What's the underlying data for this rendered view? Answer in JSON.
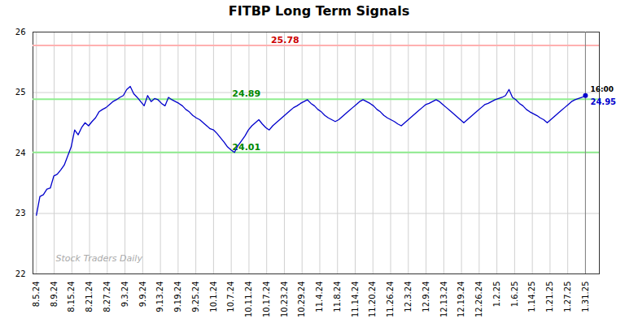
{
  "chart_data": {
    "type": "line",
    "title": "FITBP Long Term Signals",
    "color": "#0000cc",
    "values": [
      22.97,
      23.28,
      23.31,
      23.4,
      23.42,
      23.62,
      23.65,
      23.72,
      23.8,
      23.95,
      24.1,
      24.38,
      24.3,
      24.42,
      24.5,
      24.45,
      24.52,
      24.58,
      24.68,
      24.72,
      24.75,
      24.8,
      24.85,
      24.88,
      24.92,
      24.95,
      25.05,
      25.1,
      24.98,
      24.92,
      24.85,
      24.78,
      24.95,
      24.85,
      24.9,
      24.88,
      24.82,
      24.78,
      24.92,
      24.88,
      24.85,
      24.82,
      24.78,
      24.72,
      24.68,
      24.62,
      24.58,
      24.55,
      24.5,
      24.45,
      24.4,
      24.38,
      24.32,
      24.25,
      24.18,
      24.1,
      24.05,
      24.01,
      24.12,
      24.2,
      24.28,
      24.38,
      24.45,
      24.5,
      24.55,
      24.48,
      24.42,
      24.38,
      24.45,
      24.5,
      24.55,
      24.6,
      24.65,
      24.7,
      24.75,
      24.78,
      24.82,
      24.85,
      24.88,
      24.82,
      24.78,
      24.72,
      24.68,
      24.62,
      24.58,
      24.55,
      24.52,
      24.55,
      24.6,
      24.65,
      24.7,
      24.75,
      24.8,
      24.85,
      24.88,
      24.85,
      24.82,
      24.78,
      24.72,
      24.68,
      24.62,
      24.58,
      24.55,
      24.52,
      24.48,
      24.45,
      24.5,
      24.55,
      24.6,
      24.65,
      24.7,
      24.75,
      24.8,
      24.82,
      24.85,
      24.88,
      24.85,
      24.8,
      24.75,
      24.7,
      24.65,
      24.6,
      24.55,
      24.5,
      24.55,
      24.6,
      24.65,
      24.7,
      24.75,
      24.8,
      24.82,
      24.85,
      24.88,
      24.9,
      24.92,
      24.95,
      25.05,
      24.92,
      24.88,
      24.82,
      24.78,
      24.72,
      24.68,
      24.65,
      24.62,
      24.58,
      24.55,
      24.5,
      24.55,
      24.6,
      24.65,
      24.7,
      24.75,
      24.8,
      24.85,
      24.88,
      24.9,
      24.92,
      24.95
    ],
    "xlim": [
      -1,
      162
    ],
    "xticks": [
      {
        "value": 0,
        "label": "8.5.24"
      },
      {
        "value": 5.096774193548387,
        "label": "8.9.24"
      },
      {
        "value": 10.193548387096774,
        "label": "8.15.24"
      },
      {
        "value": 15.290322580645162,
        "label": "8.21.24"
      },
      {
        "value": 20.387096774193548,
        "label": "8.27.24"
      },
      {
        "value": 25.483870967741936,
        "label": "9.3.24"
      },
      {
        "value": 30.580645161290324,
        "label": "9.9.24"
      },
      {
        "value": 35.67741935483871,
        "label": "9.13.24"
      },
      {
        "value": 40.774193548387096,
        "label": "9.19.24"
      },
      {
        "value": 45.87096774193548,
        "label": "9.25.24"
      },
      {
        "value": 50.96774193548387,
        "label": "10.1.24"
      },
      {
        "value": 56.064516129032256,
        "label": "10.7.24"
      },
      {
        "value": 61.16129032258065,
        "label": "10.11.24"
      },
      {
        "value": 66.25806451612904,
        "label": "10.17.24"
      },
      {
        "value": 71.35483870967742,
        "label": "10.23.24"
      },
      {
        "value": 76.45161290322581,
        "label": "10.29.24"
      },
      {
        "value": 81.54838709677419,
        "label": "11.4.24"
      },
      {
        "value": 86.6451612903226,
        "label": "11.8.24"
      },
      {
        "value": 91.74193548387096,
        "label": "11.14.24"
      },
      {
        "value": 96.83870967741936,
        "label": "11.20.24"
      },
      {
        "value": 101.93548387096774,
        "label": "11.26.24"
      },
      {
        "value": 107.03225806451613,
        "label": "12.3.24"
      },
      {
        "value": 112.12903225806451,
        "label": "12.9.24"
      },
      {
        "value": 117.2258064516129,
        "label": "12.13.24"
      },
      {
        "value": 122.3225806451613,
        "label": "12.19.24"
      },
      {
        "value": 127.41935483870968,
        "label": "12.26.24"
      },
      {
        "value": 132.51612903225808,
        "label": "1.2.25"
      },
      {
        "value": 137.61290322580646,
        "label": "1.6.25"
      },
      {
        "value": 142.70967741935485,
        "label": "1.14.25"
      },
      {
        "value": 147.80645161290323,
        "label": "1.21.25"
      },
      {
        "value": 152.90322580645162,
        "label": "1.27.25"
      },
      {
        "value": 158,
        "label": "1.31.25"
      }
    ],
    "ylim": [
      22,
      26
    ],
    "yticks": [
      22,
      23,
      24,
      25,
      26
    ],
    "grid": true,
    "reference_lines": [
      {
        "value": 25.78,
        "color": "#ffb0b0",
        "label": "25.78",
        "label_color": "#cc0000"
      },
      {
        "value": 24.89,
        "color": "#90ee90",
        "label": "24.89",
        "label_color": "#008800"
      },
      {
        "value": 24.01,
        "color": "#90ee90",
        "label": "24.01",
        "label_color": "#008800"
      }
    ],
    "last_value": 24.95,
    "last_time": "16:00",
    "watermark": "Stock Traders Daily"
  }
}
